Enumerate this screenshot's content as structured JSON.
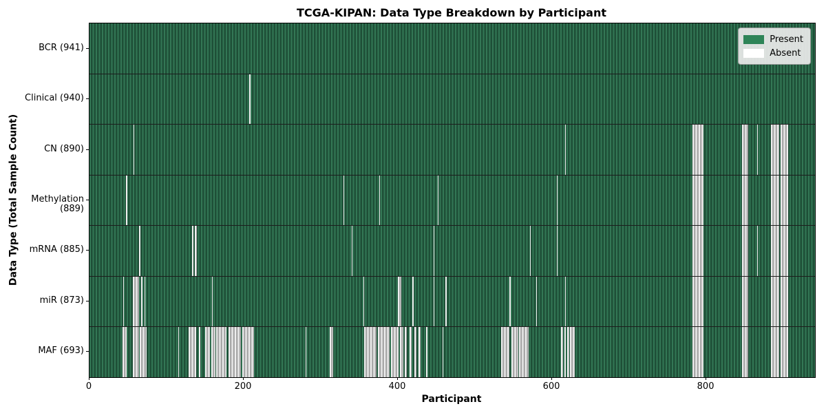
{
  "chart_data": {
    "type": "heatmap",
    "title": "TCGA-KIPAN: Data Type Breakdown by Participant",
    "xlabel": "Participant",
    "ylabel": "Data Type (Total Sample Count)",
    "x_ticks": [
      0,
      200,
      400,
      600,
      800
    ],
    "x_range": [
      0,
      941
    ],
    "grid": false,
    "legend": {
      "position": "upper-right",
      "entries": [
        {
          "label": "Present",
          "color": "#2e8457"
        },
        {
          "label": "Absent",
          "color": "#ffffff"
        }
      ]
    },
    "colors": {
      "present_light": "#337755",
      "present_dark": "#1e4f37",
      "absent_light": "#efefef",
      "absent_gray": "#a8a8a8",
      "plot_border": "#000000"
    },
    "rows": [
      {
        "label": "BCR (941)",
        "data_type": "BCR",
        "total_samples": 941,
        "absent_ranges": []
      },
      {
        "label": "Clinical (940)",
        "data_type": "Clinical",
        "total_samples": 940,
        "absent_ranges": [
          [
            207,
            209
          ]
        ]
      },
      {
        "label": "CN (890)",
        "data_type": "CN",
        "total_samples": 890,
        "absent_ranges": [
          [
            57,
            58
          ],
          [
            617,
            618
          ],
          [
            782,
            796
          ],
          [
            846,
            854
          ],
          [
            866,
            867
          ],
          [
            884,
            895
          ],
          [
            896,
            906
          ]
        ]
      },
      {
        "label": "Methylation (889)",
        "data_type": "Methylation",
        "total_samples": 889,
        "absent_ranges": [
          [
            47,
            49
          ],
          [
            329,
            330
          ],
          [
            376,
            377
          ],
          [
            452,
            453
          ],
          [
            606,
            607
          ],
          [
            782,
            796
          ],
          [
            846,
            854
          ],
          [
            884,
            895
          ],
          [
            896,
            906
          ]
        ]
      },
      {
        "label": "mRNA (885)",
        "data_type": "mRNA",
        "total_samples": 885,
        "absent_ranges": [
          [
            64,
            66
          ],
          [
            133,
            135
          ],
          [
            137,
            139
          ],
          [
            340,
            341
          ],
          [
            446,
            447
          ],
          [
            571,
            572
          ],
          [
            606,
            607
          ],
          [
            782,
            796
          ],
          [
            846,
            854
          ],
          [
            866,
            867
          ],
          [
            884,
            895
          ],
          [
            896,
            906
          ]
        ]
      },
      {
        "label": "miR (873)",
        "data_type": "miR",
        "total_samples": 873,
        "absent_ranges": [
          [
            44,
            45
          ],
          [
            56,
            64
          ],
          [
            67,
            69
          ],
          [
            71,
            72
          ],
          [
            159,
            160
          ],
          [
            355,
            356
          ],
          [
            400,
            404
          ],
          [
            419,
            420
          ],
          [
            446,
            447
          ],
          [
            462,
            463
          ],
          [
            545,
            546
          ],
          [
            579,
            580
          ],
          [
            617,
            618
          ],
          [
            782,
            796
          ],
          [
            846,
            854
          ],
          [
            884,
            895
          ],
          [
            896,
            906
          ]
        ]
      },
      {
        "label": "MAF (693)",
        "data_type": "MAF",
        "total_samples": 693,
        "absent_ranges": [
          [
            43,
            48
          ],
          [
            56,
            64
          ],
          [
            65,
            74
          ],
          [
            115,
            116
          ],
          [
            129,
            138
          ],
          [
            142,
            144
          ],
          [
            150,
            156
          ],
          [
            158,
            163
          ],
          [
            164,
            178
          ],
          [
            180,
            196
          ],
          [
            198,
            213
          ],
          [
            280,
            281
          ],
          [
            312,
            316
          ],
          [
            356,
            372
          ],
          [
            374,
            389
          ],
          [
            391,
            401
          ],
          [
            403,
            407
          ],
          [
            409,
            412
          ],
          [
            415,
            418
          ],
          [
            421,
            424
          ],
          [
            427,
            429
          ],
          [
            437,
            438
          ],
          [
            458,
            459
          ],
          [
            534,
            545
          ],
          [
            547,
            556
          ],
          [
            557,
            570
          ],
          [
            612,
            614
          ],
          [
            616,
            618
          ],
          [
            620,
            622
          ],
          [
            623,
            629
          ],
          [
            782,
            796
          ],
          [
            846,
            854
          ],
          [
            884,
            895
          ],
          [
            896,
            906
          ]
        ]
      }
    ]
  }
}
